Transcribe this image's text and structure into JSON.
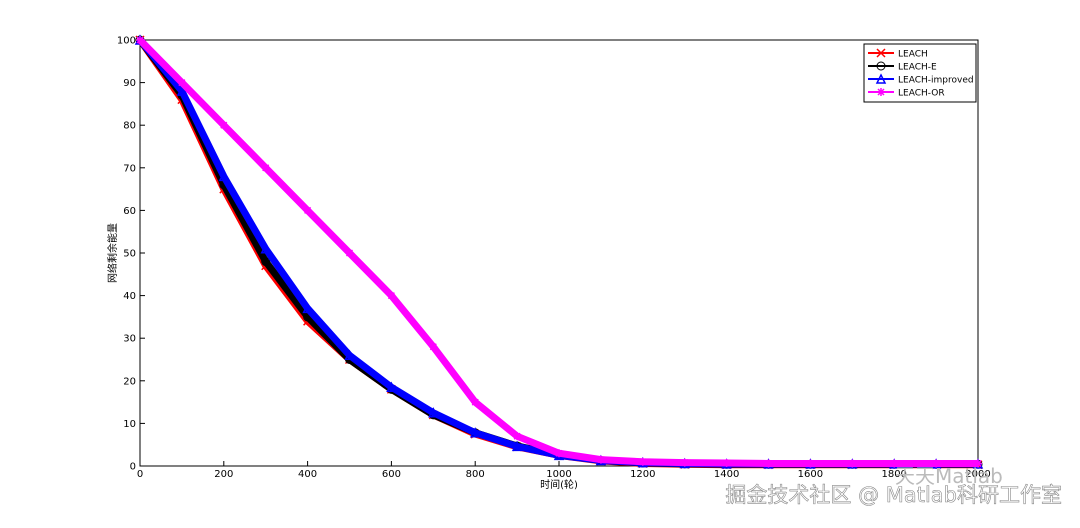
{
  "chart_data": {
    "type": "line",
    "xlabel": "时间(轮)",
    "ylabel": "网络剩余能量",
    "x": [
      0,
      100,
      200,
      300,
      400,
      500,
      600,
      700,
      800,
      900,
      1000,
      1100,
      1200,
      1300,
      1400,
      1500,
      1600,
      1700,
      1800,
      1900,
      2000
    ],
    "series": [
      {
        "name": "LEACH",
        "color": "#ff0000",
        "marker": "x",
        "values": [
          100,
          86,
          65,
          47,
          34,
          25,
          18,
          12,
          7.5,
          4.5,
          2.5,
          1.2,
          0.6,
          0.4,
          0.3,
          0.3,
          0.3,
          0.3,
          0.3,
          0.3,
          0.3
        ]
      },
      {
        "name": "LEACH-E",
        "color": "#000000",
        "marker": "o",
        "values": [
          100,
          87,
          66,
          48,
          35,
          25,
          18,
          12,
          7.8,
          4.7,
          2.6,
          1.3,
          0.7,
          0.5,
          0.4,
          0.4,
          0.4,
          0.4,
          0.4,
          0.4,
          0.4
        ]
      },
      {
        "name": "LEACH-improved",
        "color": "#0000ff",
        "marker": "^",
        "values": [
          100,
          88,
          68,
          51,
          37,
          26,
          18.5,
          12.5,
          7.8,
          4.6,
          2.5,
          1.3,
          0.8,
          0.6,
          0.5,
          0.5,
          0.5,
          0.5,
          0.5,
          0.5,
          0.5
        ]
      },
      {
        "name": "LEACH-OR",
        "color": "#ff00ff",
        "marker": "*",
        "values": [
          100,
          90,
          80,
          70,
          60,
          50,
          40,
          28,
          15,
          7,
          3,
          1.5,
          1,
          0.8,
          0.7,
          0.6,
          0.6,
          0.6,
          0.6,
          0.6,
          0.6
        ]
      }
    ],
    "xlim": [
      0,
      2000
    ],
    "xticks": [
      0,
      200,
      400,
      600,
      800,
      1000,
      1200,
      1400,
      1600,
      1800,
      2000
    ],
    "ylim": [
      0,
      100
    ],
    "yticks": [
      0,
      10,
      20,
      30,
      40,
      50,
      60,
      70,
      80,
      90,
      100
    ],
    "legend": "top-right",
    "watermarks": [
      "天天Matlab",
      "掘金技术社区 @ Matlab科研工作室"
    ]
  }
}
